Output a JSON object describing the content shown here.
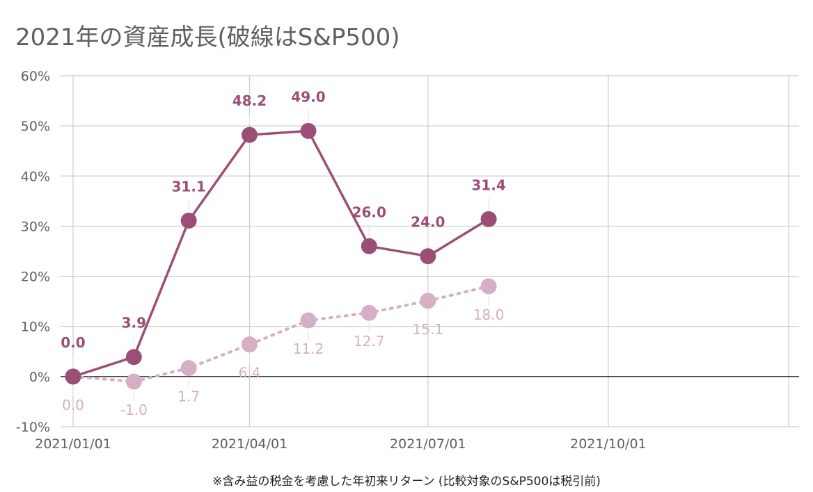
{
  "title": "2021年の資産成長(破線はS&P500)",
  "footnote": "※含み益の税金を考慮した年初来リターン (比較対象のS&P500は税引前)",
  "colors": {
    "portfolio": "#9b4f77",
    "sp500": "#d5afc4",
    "grid": "#cccccc",
    "zero": "#222222",
    "text": "#5f5f5f"
  },
  "chart_data": {
    "type": "line",
    "title": "2021年の資産成長(破線はS&P500)",
    "xlabel": "",
    "ylabel": "",
    "ylim": [
      -10,
      60
    ],
    "y_ticks": [
      "-10%",
      "0%",
      "10%",
      "20%",
      "30%",
      "40%",
      "50%",
      "60%"
    ],
    "y_tick_values": [
      -10,
      0,
      10,
      20,
      30,
      40,
      50,
      60
    ],
    "x_ticks": [
      "2021/01/01",
      "2021/04/01",
      "2021/07/01",
      "2021/10/01"
    ],
    "x_tick_dates": [
      "2021-01-01",
      "2021-04-01",
      "2021-07-01",
      "2021-10-01"
    ],
    "x_range": [
      "2021-01-01",
      "2021-12-31"
    ],
    "x": [
      "2021-01-01",
      "2021-02-01",
      "2021-03-01",
      "2021-04-01",
      "2021-05-01",
      "2021-06-01",
      "2021-07-01",
      "2021-08-01"
    ],
    "grid": true,
    "series": [
      {
        "style": "solid",
        "values": [
          0.0,
          3.9,
          31.1,
          48.2,
          49.0,
          26.0,
          24.0,
          31.4
        ],
        "labels": [
          "0.0",
          "3.9",
          "31.1",
          "48.2",
          "49.0",
          "26.0",
          "24.0",
          "31.4"
        ],
        "label_position": "above"
      },
      {
        "style": "dotted",
        "values": [
          0.0,
          -1.0,
          1.7,
          6.4,
          11.2,
          12.7,
          15.1,
          18.0
        ],
        "labels": [
          "0.0",
          "-1.0",
          "1.7",
          "6.4",
          "11.2",
          "12.7",
          "15.1",
          "18.0"
        ],
        "label_position": "below"
      }
    ]
  }
}
